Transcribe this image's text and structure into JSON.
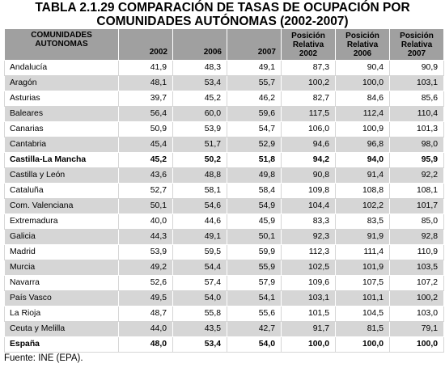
{
  "title_line1": "TABLA 2.1.29 COMPARACIÓN DE TASAS DE OCUPACIÓN POR",
  "title_line2": "COMUNIDADES AUTÓNOMAS (2002-2007)",
  "headers": {
    "region_line1": "COMUNIDADES",
    "region_line2": "AUTONOMAS",
    "y2002": "2002",
    "y2006": "2006",
    "y2007": "2007",
    "rel2002": [
      "Posición",
      "Relativa",
      "2002"
    ],
    "rel2006": [
      "Posición",
      "Relativa",
      "2006"
    ],
    "rel2007": [
      "Posición",
      "Relativa",
      "2007"
    ]
  },
  "rows": [
    {
      "name": "Andalucía",
      "v": [
        "41,9",
        "48,3",
        "49,1",
        "87,3",
        "90,4",
        "90,9"
      ],
      "bold": false
    },
    {
      "name": "Aragón",
      "v": [
        "48,1",
        "53,4",
        "55,7",
        "100,2",
        "100,0",
        "103,1"
      ],
      "bold": false
    },
    {
      "name": "Asturias",
      "v": [
        "39,7",
        "45,2",
        "46,2",
        "82,7",
        "84,6",
        "85,6"
      ],
      "bold": false
    },
    {
      "name": "Baleares",
      "v": [
        "56,4",
        "60,0",
        "59,6",
        "117,5",
        "112,4",
        "110,4"
      ],
      "bold": false
    },
    {
      "name": "Canarias",
      "v": [
        "50,9",
        "53,9",
        "54,7",
        "106,0",
        "100,9",
        "101,3"
      ],
      "bold": false
    },
    {
      "name": "Cantabria",
      "v": [
        "45,4",
        "51,7",
        "52,9",
        "94,6",
        "96,8",
        "98,0"
      ],
      "bold": false
    },
    {
      "name": "Castilla-La Mancha",
      "v": [
        "45,2",
        "50,2",
        "51,8",
        "94,2",
        "94,0",
        "95,9"
      ],
      "bold": true
    },
    {
      "name": "Castilla y León",
      "v": [
        "43,6",
        "48,8",
        "49,8",
        "90,8",
        "91,4",
        "92,2"
      ],
      "bold": false
    },
    {
      "name": "Cataluña",
      "v": [
        "52,7",
        "58,1",
        "58,4",
        "109,8",
        "108,8",
        "108,1"
      ],
      "bold": false
    },
    {
      "name": "Com. Valenciana",
      "v": [
        "50,1",
        "54,6",
        "54,9",
        "104,4",
        "102,2",
        "101,7"
      ],
      "bold": false
    },
    {
      "name": "Extremadura",
      "v": [
        "40,0",
        "44,6",
        "45,9",
        "83,3",
        "83,5",
        "85,0"
      ],
      "bold": false
    },
    {
      "name": "Galicia",
      "v": [
        "44,3",
        "49,1",
        "50,1",
        "92,3",
        "91,9",
        "92,8"
      ],
      "bold": false
    },
    {
      "name": "Madrid",
      "v": [
        "53,9",
        "59,5",
        "59,9",
        "112,3",
        "111,4",
        "110,9"
      ],
      "bold": false
    },
    {
      "name": "Murcia",
      "v": [
        "49,2",
        "54,4",
        "55,9",
        "102,5",
        "101,9",
        "103,5"
      ],
      "bold": false
    },
    {
      "name": "Navarra",
      "v": [
        "52,6",
        "57,4",
        "57,9",
        "109,6",
        "107,5",
        "107,2"
      ],
      "bold": false
    },
    {
      "name": "País Vasco",
      "v": [
        "49,5",
        "54,0",
        "54,1",
        "103,1",
        "101,1",
        "100,2"
      ],
      "bold": false
    },
    {
      "name": "La Rioja",
      "v": [
        "48,7",
        "55,8",
        "55,6",
        "101,5",
        "104,5",
        "103,0"
      ],
      "bold": false
    },
    {
      "name": "Ceuta y Melilla",
      "v": [
        "44,0",
        "43,5",
        "42,7",
        "91,7",
        "81,5",
        "79,1"
      ],
      "bold": false
    },
    {
      "name": "España",
      "v": [
        "48,0",
        "53,4",
        "54,0",
        "100,0",
        "100,0",
        "100,0"
      ],
      "bold": true
    }
  ],
  "source": "Fuente: INE (EPA)."
}
